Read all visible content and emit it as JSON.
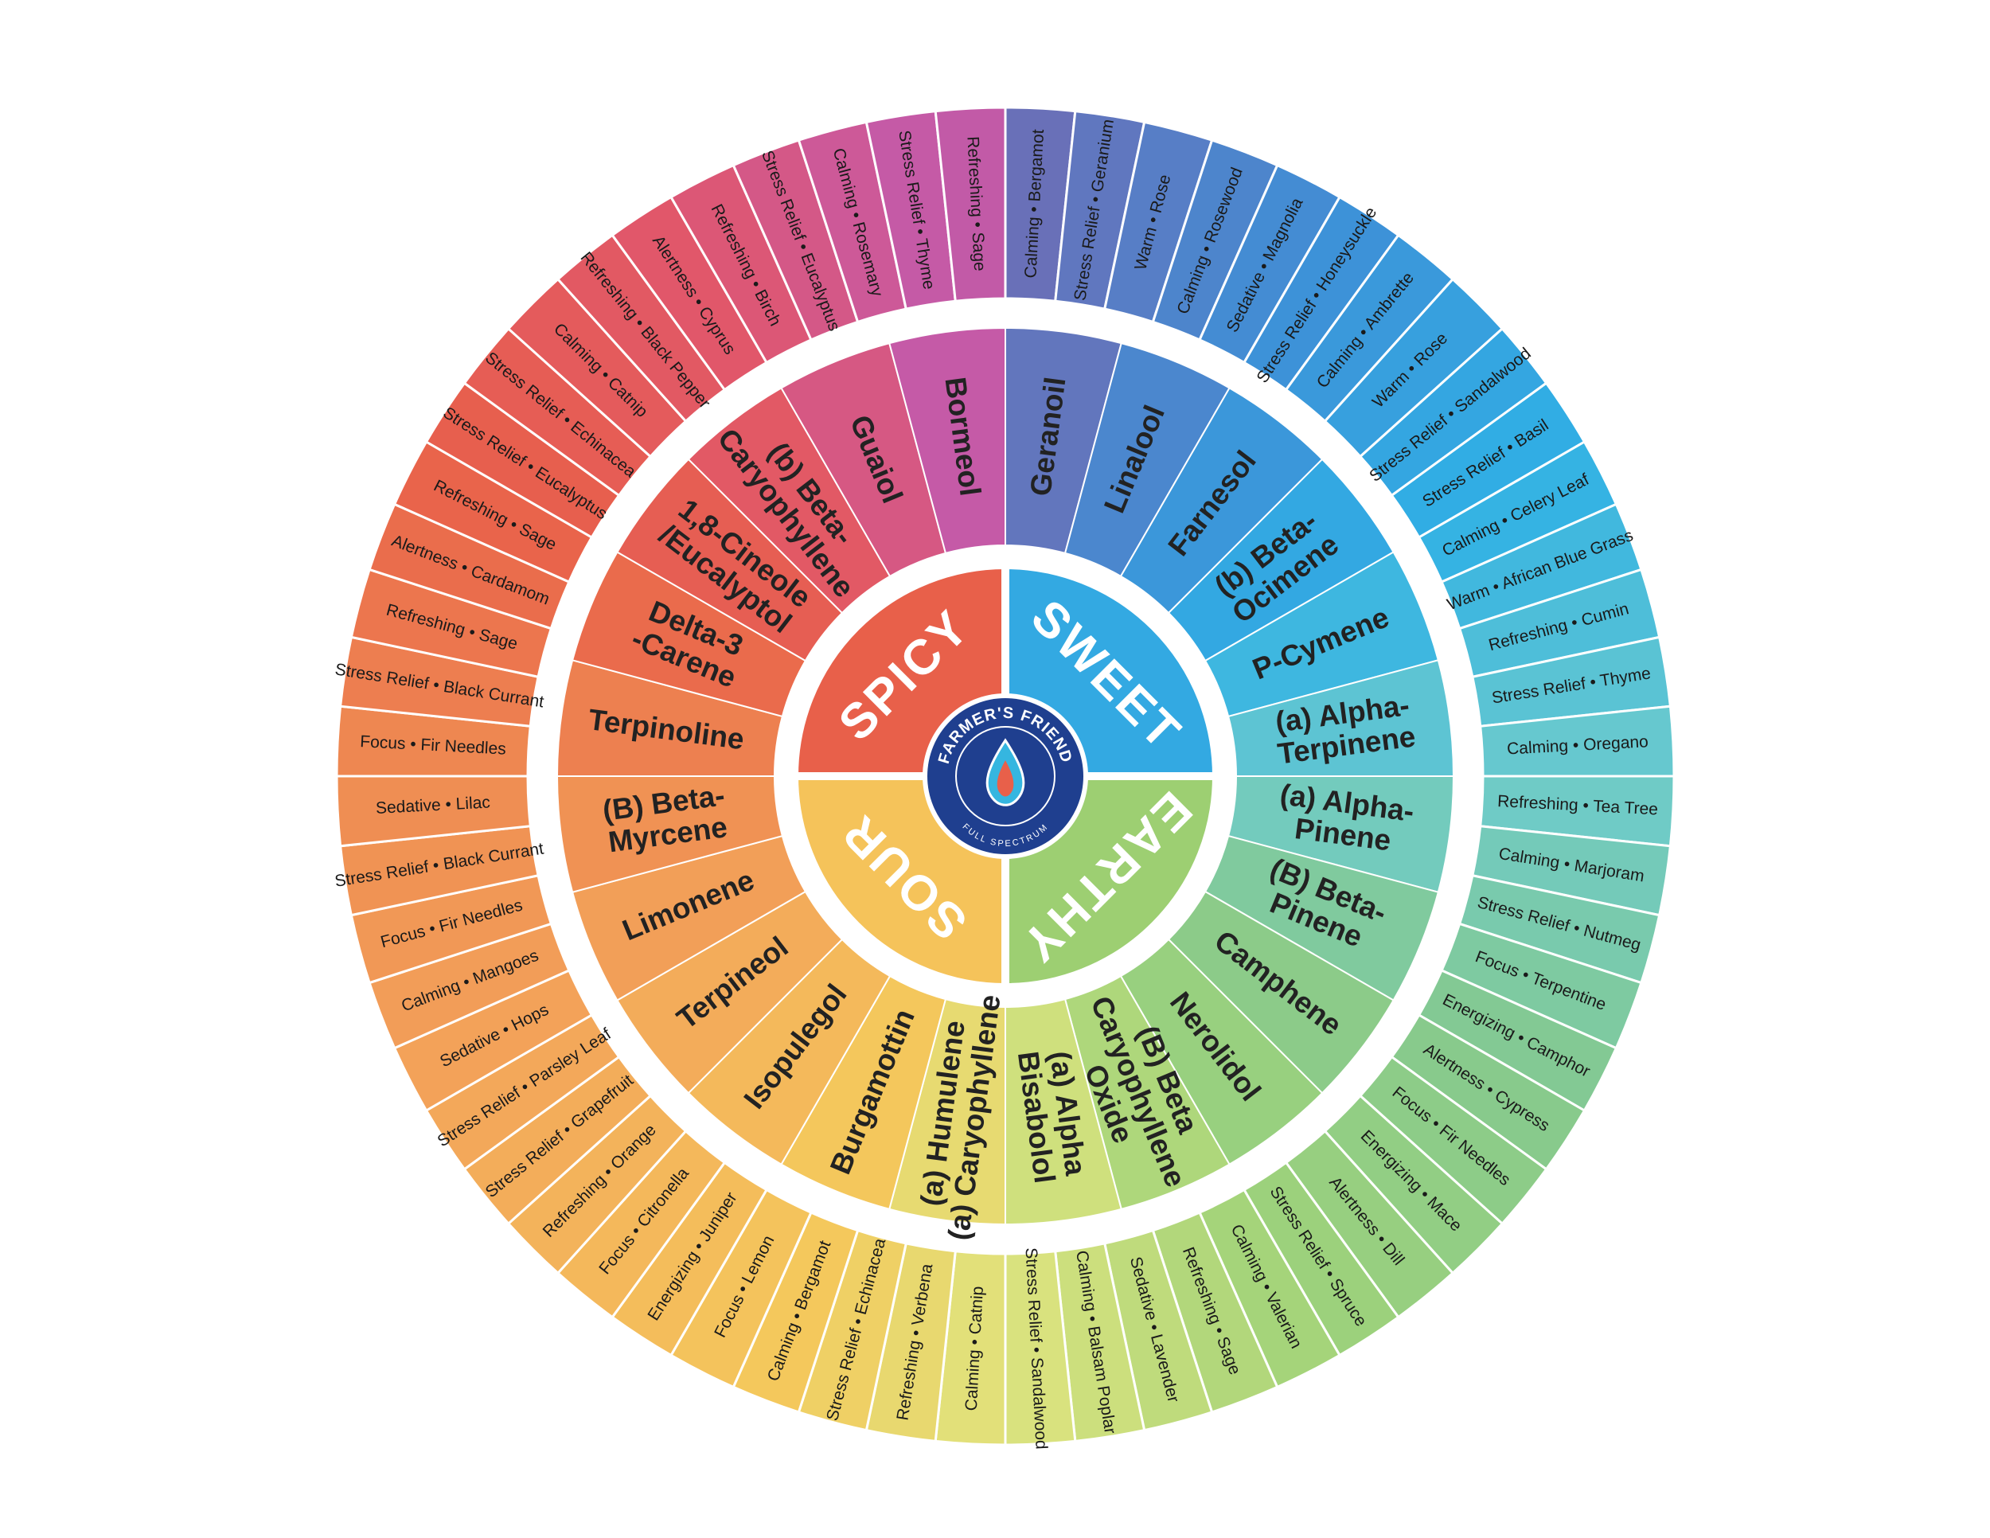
{
  "logo": {
    "brand": "FARMER'S FRIEND",
    "tagline": "FULL SPECTRUM"
  },
  "categories": [
    "SWEET",
    "EARTHY",
    "SOUR",
    "SPICY"
  ],
  "terpenes": [
    {
      "lines": [
        "Geranoil"
      ]
    },
    {
      "lines": [
        "Linalool"
      ]
    },
    {
      "lines": [
        "Farnesol"
      ]
    },
    {
      "lines": [
        "(b) Beta-",
        "Ocimene"
      ]
    },
    {
      "lines": [
        "P-Cymene"
      ]
    },
    {
      "lines": [
        "(a) Alpha-",
        "Terpinene"
      ]
    },
    {
      "lines": [
        "(a) Alpha-",
        "Pinene"
      ]
    },
    {
      "lines": [
        "(B) Beta-",
        "Pinene"
      ]
    },
    {
      "lines": [
        "Camphene"
      ]
    },
    {
      "lines": [
        "Nerolidol"
      ]
    },
    {
      "lines": [
        "(B) Beta",
        "Caryophyllene",
        "Oxide"
      ]
    },
    {
      "lines": [
        "(a) Alpha",
        "Bisabolol"
      ]
    },
    {
      "lines": [
        "(a) Humulene",
        "(a) Caryophyllene"
      ]
    },
    {
      "lines": [
        "Burgamottin"
      ]
    },
    {
      "lines": [
        "Isopulegol"
      ]
    },
    {
      "lines": [
        "Terpineol"
      ]
    },
    {
      "lines": [
        "Limonene"
      ]
    },
    {
      "lines": [
        "(B) Beta-",
        "Myrcene"
      ]
    },
    {
      "lines": [
        "Terpinoline"
      ]
    },
    {
      "lines": [
        "Delta-3",
        "-Carene"
      ]
    },
    {
      "lines": [
        "1,8-Cineole",
        "/Eucalyptol"
      ]
    },
    {
      "lines": [
        "(b) Beta-",
        "Caryophyllene"
      ]
    },
    {
      "lines": [
        "Guaiol"
      ]
    },
    {
      "lines": [
        "Bormeol"
      ]
    }
  ],
  "effects": [
    "Calming • Bergamot",
    "Stress Relief • Geranium",
    "Warm • Rose",
    "Calming • Rosewood",
    "Sedative • Magnolia",
    "Stress Relief • Honeysuckle",
    "Calming • Ambrette",
    "Warm • Rose",
    "Stress Relief • Sandalwood",
    "Stress Relief • Basil",
    "Calming • Celery Leaf",
    "Warm • African Blue Grass",
    "Refreshing • Cumin",
    "Stress Relief • Thyme",
    "Calming • Oregano",
    "Refreshing • Tea Tree",
    "Calming • Marjoram",
    "Stress Relief • Nutmeg",
    "Focus • Terpentine",
    "Energizing • Camphor",
    "Alertness • Cypress",
    "Focus • Fir Needles",
    "Energizing • Mace",
    "Alertness • Dill",
    "Stress Relief • Spruce",
    "Calming • Valerian",
    "Refreshing • Sage",
    "Sedative • Lavender",
    "Calming • Balsam Poplar",
    "Stress Relief • Sandalwood",
    "Calming • Catnip",
    "Refreshing • Verbena",
    "Stress Relief • Echinacea",
    "Calming • Bergamot",
    "Focus • Lemon",
    "Energizing • Juniper",
    "Focus • Citronella",
    "Refreshing • Orange",
    "Stress Relief • Grapefruit",
    "Stress Relief • Parsley Leaf",
    "Sedative • Hops",
    "Calming • Mangoes",
    "Focus • Fir Needles",
    "Stress Relief • Black Currant",
    "Sedative • Lilac",
    "Focus • Fir Needles",
    "Stress Relief • Black Currant",
    "Refreshing • Sage",
    "Alertness • Cardamom",
    "Refreshing • Sage",
    "Stress Relief • Eucalyptus",
    "Stress Relief • Echinacea",
    "Calming • Catnip",
    "Refreshing • Black Pepper",
    "Alertness • Cyprus",
    "Refreshing • Birch",
    "Stress Relief • Eucalyptus",
    "Calming • Rosemary",
    "Stress Relief • Thyme",
    "Refreshing • Sage"
  ]
}
